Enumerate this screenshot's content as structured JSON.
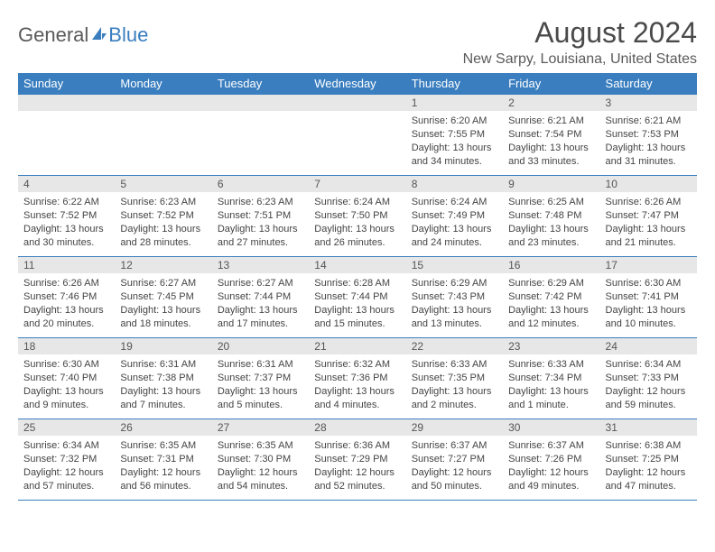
{
  "brand": {
    "word1": "General",
    "word2": "Blue"
  },
  "header": {
    "month_title": "August 2024",
    "location": "New Sarpy, Louisiana, United States"
  },
  "colors": {
    "header_bg": "#3a7ebf",
    "header_text": "#ffffff",
    "daynum_bg": "#e7e7e7",
    "rule": "#3a7ebf",
    "text": "#444444"
  },
  "calendar": {
    "day_headers": [
      "Sunday",
      "Monday",
      "Tuesday",
      "Wednesday",
      "Thursday",
      "Friday",
      "Saturday"
    ],
    "weeks": [
      [
        null,
        null,
        null,
        null,
        {
          "n": "1",
          "sr": "6:20 AM",
          "ss": "7:55 PM",
          "dl": "13 hours and 34 minutes."
        },
        {
          "n": "2",
          "sr": "6:21 AM",
          "ss": "7:54 PM",
          "dl": "13 hours and 33 minutes."
        },
        {
          "n": "3",
          "sr": "6:21 AM",
          "ss": "7:53 PM",
          "dl": "13 hours and 31 minutes."
        }
      ],
      [
        {
          "n": "4",
          "sr": "6:22 AM",
          "ss": "7:52 PM",
          "dl": "13 hours and 30 minutes."
        },
        {
          "n": "5",
          "sr": "6:23 AM",
          "ss": "7:52 PM",
          "dl": "13 hours and 28 minutes."
        },
        {
          "n": "6",
          "sr": "6:23 AM",
          "ss": "7:51 PM",
          "dl": "13 hours and 27 minutes."
        },
        {
          "n": "7",
          "sr": "6:24 AM",
          "ss": "7:50 PM",
          "dl": "13 hours and 26 minutes."
        },
        {
          "n": "8",
          "sr": "6:24 AM",
          "ss": "7:49 PM",
          "dl": "13 hours and 24 minutes."
        },
        {
          "n": "9",
          "sr": "6:25 AM",
          "ss": "7:48 PM",
          "dl": "13 hours and 23 minutes."
        },
        {
          "n": "10",
          "sr": "6:26 AM",
          "ss": "7:47 PM",
          "dl": "13 hours and 21 minutes."
        }
      ],
      [
        {
          "n": "11",
          "sr": "6:26 AM",
          "ss": "7:46 PM",
          "dl": "13 hours and 20 minutes."
        },
        {
          "n": "12",
          "sr": "6:27 AM",
          "ss": "7:45 PM",
          "dl": "13 hours and 18 minutes."
        },
        {
          "n": "13",
          "sr": "6:27 AM",
          "ss": "7:44 PM",
          "dl": "13 hours and 17 minutes."
        },
        {
          "n": "14",
          "sr": "6:28 AM",
          "ss": "7:44 PM",
          "dl": "13 hours and 15 minutes."
        },
        {
          "n": "15",
          "sr": "6:29 AM",
          "ss": "7:43 PM",
          "dl": "13 hours and 13 minutes."
        },
        {
          "n": "16",
          "sr": "6:29 AM",
          "ss": "7:42 PM",
          "dl": "13 hours and 12 minutes."
        },
        {
          "n": "17",
          "sr": "6:30 AM",
          "ss": "7:41 PM",
          "dl": "13 hours and 10 minutes."
        }
      ],
      [
        {
          "n": "18",
          "sr": "6:30 AM",
          "ss": "7:40 PM",
          "dl": "13 hours and 9 minutes."
        },
        {
          "n": "19",
          "sr": "6:31 AM",
          "ss": "7:38 PM",
          "dl": "13 hours and 7 minutes."
        },
        {
          "n": "20",
          "sr": "6:31 AM",
          "ss": "7:37 PM",
          "dl": "13 hours and 5 minutes."
        },
        {
          "n": "21",
          "sr": "6:32 AM",
          "ss": "7:36 PM",
          "dl": "13 hours and 4 minutes."
        },
        {
          "n": "22",
          "sr": "6:33 AM",
          "ss": "7:35 PM",
          "dl": "13 hours and 2 minutes."
        },
        {
          "n": "23",
          "sr": "6:33 AM",
          "ss": "7:34 PM",
          "dl": "13 hours and 1 minute."
        },
        {
          "n": "24",
          "sr": "6:34 AM",
          "ss": "7:33 PM",
          "dl": "12 hours and 59 minutes."
        }
      ],
      [
        {
          "n": "25",
          "sr": "6:34 AM",
          "ss": "7:32 PM",
          "dl": "12 hours and 57 minutes."
        },
        {
          "n": "26",
          "sr": "6:35 AM",
          "ss": "7:31 PM",
          "dl": "12 hours and 56 minutes."
        },
        {
          "n": "27",
          "sr": "6:35 AM",
          "ss": "7:30 PM",
          "dl": "12 hours and 54 minutes."
        },
        {
          "n": "28",
          "sr": "6:36 AM",
          "ss": "7:29 PM",
          "dl": "12 hours and 52 minutes."
        },
        {
          "n": "29",
          "sr": "6:37 AM",
          "ss": "7:27 PM",
          "dl": "12 hours and 50 minutes."
        },
        {
          "n": "30",
          "sr": "6:37 AM",
          "ss": "7:26 PM",
          "dl": "12 hours and 49 minutes."
        },
        {
          "n": "31",
          "sr": "6:38 AM",
          "ss": "7:25 PM",
          "dl": "12 hours and 47 minutes."
        }
      ]
    ],
    "labels": {
      "sunrise": "Sunrise:",
      "sunset": "Sunset:",
      "daylight": "Daylight:"
    }
  }
}
